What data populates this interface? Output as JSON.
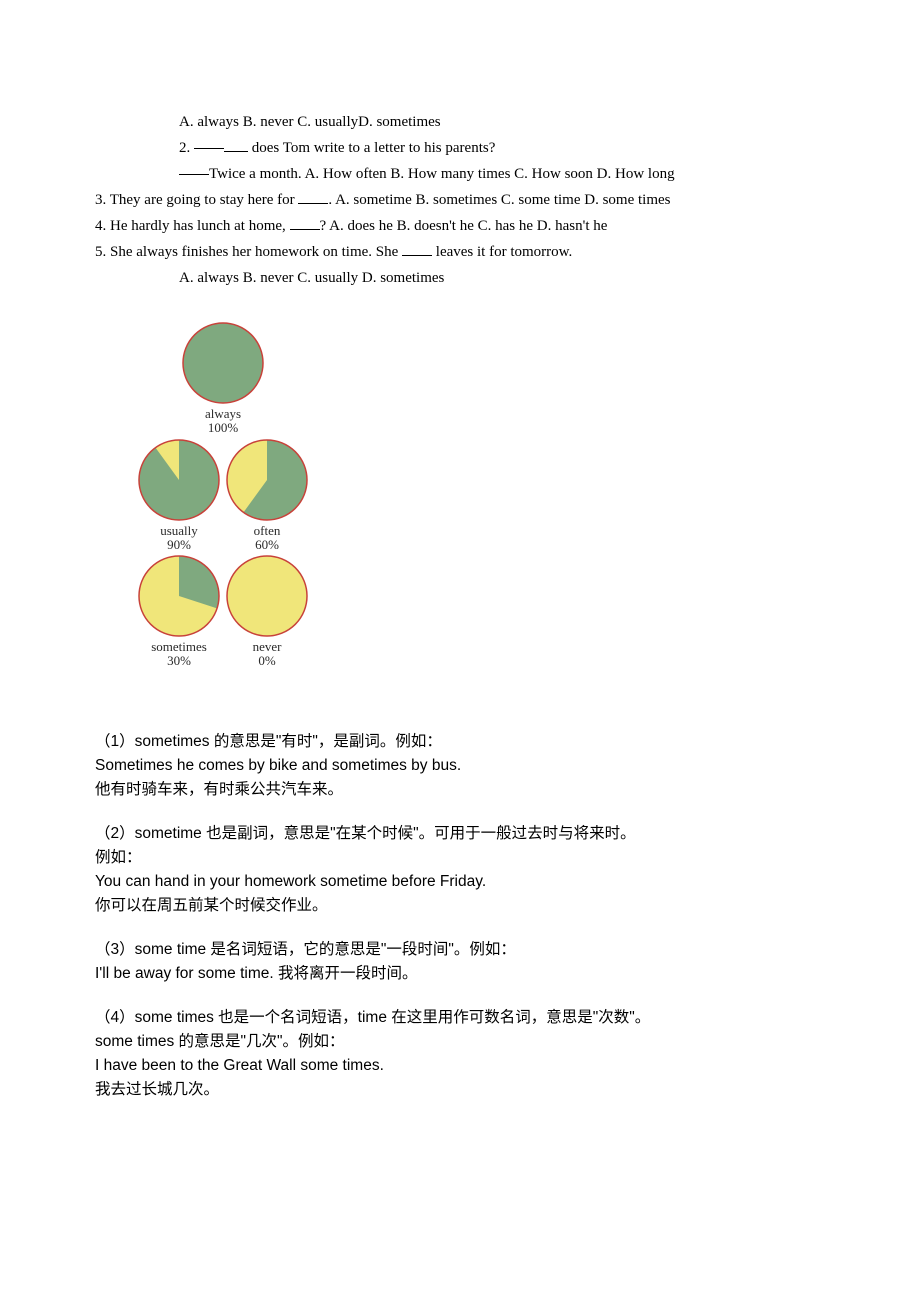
{
  "q1": {
    "options": "A. always B. never C. usuallyD. sometimes"
  },
  "q2": {
    "prompt_suffix": " does Tom write to a letter to his parents?",
    "answer_line": "Twice a month.     A. How often B. How many times     C. How soon D. How long"
  },
  "q3": {
    "prefix": "3. They are going to stay here for ",
    "suffix": ".    A. sometime B. sometimes C. some time D. some times"
  },
  "q4": {
    "prefix": "4. He hardly has lunch at home, ",
    "suffix": "?    A. does he B. doesn't he C. has he D. hasn't he"
  },
  "q5": {
    "prefix": "5. She always finishes her homework on time. She ",
    "suffix": " leaves it for tomorrow.",
    "options": "A. always B. never C. usually D. sometimes"
  },
  "chart": {
    "type": "pie-group",
    "pie_radius": 40,
    "border_color": "#c8423a",
    "border_width": 1.5,
    "fill_color": "#7fa97f",
    "empty_color": "#f0e67a",
    "bg_texture": "#a0b89a",
    "items": [
      {
        "label": "always",
        "percent": "100%",
        "value": 100
      },
      {
        "label": "usually",
        "percent": "90%",
        "value": 90
      },
      {
        "label": "often",
        "percent": "60%",
        "value": 60
      },
      {
        "label": "sometimes",
        "percent": "30%",
        "value": 30
      },
      {
        "label": "never",
        "percent": "0%",
        "value": 0
      }
    ]
  },
  "explain": {
    "e1": {
      "l1": "（1）sometimes 的意思是\"有时\"，是副词。例如：",
      "l2": "Sometimes he comes by bike and sometimes by bus.",
      "l3": "他有时骑车来，有时乘公共汽车来。"
    },
    "e2": {
      "l1": "（2）sometime 也是副词，意思是\"在某个时候\"。可用于一般过去时与将来时。",
      "l2": "例如：",
      "l3": "You can hand in your homework sometime before Friday.",
      "l4": "你可以在周五前某个时候交作业。"
    },
    "e3": {
      "l1": "（3）some time 是名词短语，它的意思是\"一段时间\"。例如：",
      "l2": "I'll be away for some time.  我将离开一段时间。"
    },
    "e4": {
      "l1": "（4）some times 也是一个名词短语，time 在这里用作可数名词，意思是\"次数\"。",
      "l2": "some times 的意思是\"几次\"。例如：",
      "l3": "I have been to the Great Wall some times.",
      "l4": "我去过长城几次。"
    }
  }
}
